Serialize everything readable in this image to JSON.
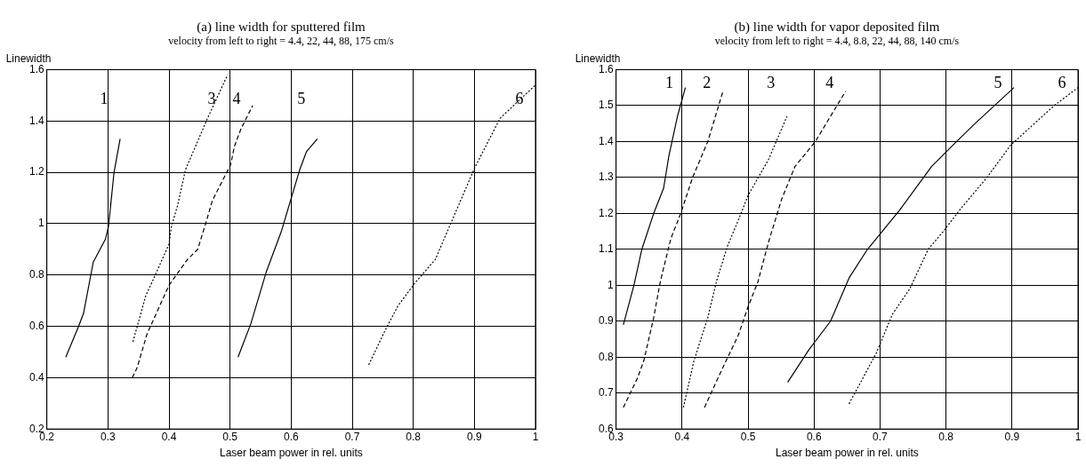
{
  "chart_data": [
    {
      "type": "line",
      "title": "(a) line width for sputtered film",
      "subtitle": "velocity from left to right = 4.4, 22, 44, 88, 175 cm/s",
      "xlabel": "Laser beam power in rel. units",
      "ylabel": "Linewidth",
      "xlim": [
        0.2,
        1
      ],
      "xticks": [
        0.2,
        0.3,
        0.4,
        0.5,
        0.6,
        0.7,
        0.8,
        0.9,
        1
      ],
      "ylim": [
        0.2,
        1.6
      ],
      "yticks": [
        0.2,
        0.4,
        0.6,
        0.8,
        1,
        1.2,
        1.4,
        1.6
      ],
      "grid": true,
      "legend": false,
      "marker": "none",
      "series": [
        {
          "name": "1",
          "color": "#000000",
          "line_style": "solid",
          "x": [
            0.231,
            0.252,
            0.26,
            0.276,
            0.296,
            0.301,
            0.31,
            0.32
          ],
          "values": [
            0.48,
            0.6,
            0.65,
            0.85,
            0.94,
            0.99,
            1.2,
            1.33
          ]
        },
        {
          "name": "3",
          "color": "#000000",
          "line_style": "dotted",
          "x": [
            0.341,
            0.362,
            0.37,
            0.4,
            0.404,
            0.414,
            0.427,
            0.436,
            0.463,
            0.496
          ],
          "values": [
            0.54,
            0.72,
            0.76,
            0.92,
            0.99,
            1.07,
            1.21,
            1.26,
            1.41,
            1.58
          ]
        },
        {
          "name": "4",
          "color": "#000000",
          "line_style": "dashed",
          "x": [
            0.34,
            0.348,
            0.364,
            0.4,
            0.43,
            0.447,
            0.46,
            0.471,
            0.501,
            0.507,
            0.518,
            0.537
          ],
          "values": [
            0.4,
            0.44,
            0.57,
            0.76,
            0.86,
            0.9,
            1,
            1.09,
            1.23,
            1.3,
            1.37,
            1.46
          ]
        },
        {
          "name": "5",
          "color": "#000000",
          "line_style": "solid",
          "x": [
            0.513,
            0.534,
            0.559,
            0.584,
            0.614,
            0.625,
            0.643
          ],
          "values": [
            0.48,
            0.61,
            0.81,
            0.97,
            1.21,
            1.28,
            1.33
          ]
        },
        {
          "name": "6",
          "color": "#000000",
          "line_style": "dotted",
          "x": [
            0.727,
            0.753,
            0.775,
            0.803,
            0.836,
            0.863,
            0.901,
            0.942,
            1
          ],
          "values": [
            0.45,
            0.58,
            0.68,
            0.77,
            0.86,
            1.01,
            1.22,
            1.41,
            1.54
          ]
        }
      ]
    },
    {
      "type": "line",
      "title": "(b) line width for vapor deposited film",
      "subtitle": "velocity from left to right = 4.4, 8.8, 22, 44, 88, 140 cm/s",
      "xlabel": "Laser beam power in rel. units",
      "ylabel": "Linewidth",
      "xlim": [
        0.3,
        1
      ],
      "xticks": [
        0.3,
        0.4,
        0.5,
        0.6,
        0.7,
        0.8,
        0.9,
        1
      ],
      "ylim": [
        0.6,
        1.6
      ],
      "yticks": [
        0.6,
        0.7,
        0.8,
        0.9,
        1,
        1.1,
        1.2,
        1.3,
        1.4,
        1.5,
        1.6
      ],
      "grid": true,
      "legend": false,
      "marker": "none",
      "series": [
        {
          "name": "1",
          "color": "#000000",
          "line_style": "solid",
          "x": [
            0.311,
            0.327,
            0.339,
            0.357,
            0.372,
            0.38,
            0.393,
            0.405
          ],
          "values": [
            0.89,
            1,
            1.1,
            1.2,
            1.27,
            1.36,
            1.47,
            1.55
          ]
        },
        {
          "name": "2",
          "color": "#000000",
          "line_style": "dashed",
          "x": [
            0.311,
            0.332,
            0.342,
            0.357,
            0.367,
            0.383,
            0.398,
            0.416,
            0.439,
            0.462
          ],
          "values": [
            0.66,
            0.74,
            0.79,
            0.91,
            1.01,
            1.13,
            1.2,
            1.3,
            1.4,
            1.54
          ]
        },
        {
          "name": "3",
          "color": "#000000",
          "line_style": "dotted",
          "x": [
            0.402,
            0.418,
            0.439,
            0.452,
            0.469,
            0.485,
            0.5,
            0.531,
            0.559
          ],
          "values": [
            0.66,
            0.79,
            0.91,
            1.01,
            1.11,
            1.18,
            1.25,
            1.35,
            1.47
          ]
        },
        {
          "name": "4",
          "color": "#000000",
          "line_style": "dashed",
          "x": [
            0.434,
            0.459,
            0.485,
            0.5,
            0.515,
            0.531,
            0.551,
            0.571,
            0.602,
            0.638,
            0.648
          ],
          "values": [
            0.66,
            0.76,
            0.86,
            0.94,
            1.01,
            1.12,
            1.24,
            1.33,
            1.4,
            1.51,
            1.54
          ]
        },
        {
          "name": "5",
          "color": "#000000",
          "line_style": "solid",
          "x": [
            0.56,
            0.592,
            0.625,
            0.653,
            0.681,
            0.699,
            0.73,
            0.778,
            0.816,
            0.844,
            0.903
          ],
          "values": [
            0.73,
            0.82,
            0.9,
            1.02,
            1.1,
            1.14,
            1.21,
            1.33,
            1.4,
            1.45,
            1.55
          ]
        },
        {
          "name": "6",
          "color": "#000000",
          "line_style": "dotted",
          "x": [
            0.653,
            0.694,
            0.719,
            0.745,
            0.773,
            0.796,
            0.821,
            0.862,
            0.898,
            0.964,
            1
          ],
          "values": [
            0.67,
            0.81,
            0.92,
            0.99,
            1.1,
            1.15,
            1.21,
            1.3,
            1.39,
            1.5,
            1.55
          ]
        }
      ]
    }
  ]
}
